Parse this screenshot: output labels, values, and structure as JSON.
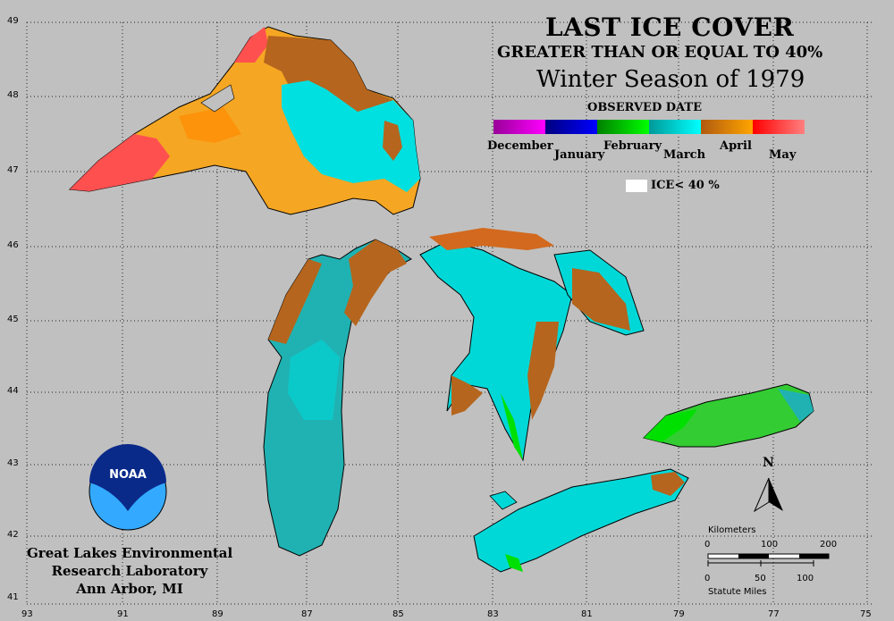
{
  "header": {
    "title": "LAST ICE COVER",
    "subtitle": "GREATER THAN OR EQUAL TO 40%",
    "season": "Winter Season of 1979"
  },
  "legend": {
    "heading": "OBSERVED DATE",
    "months": [
      "December",
      "January",
      "February",
      "March",
      "April",
      "May"
    ],
    "colors": {
      "december": [
        "#990099",
        "#ff00ff"
      ],
      "january": [
        "#000080",
        "#0000ff"
      ],
      "february": [
        "#008000",
        "#00ff00"
      ],
      "march": [
        "#009999",
        "#00ffff"
      ],
      "april": [
        "#b05a10",
        "#ffa500"
      ],
      "may": [
        "#ff0000",
        "#ff8080"
      ]
    },
    "no_ice_label": "ICE< 40 %"
  },
  "axes": {
    "lat_ticks": [
      "49",
      "48",
      "47",
      "46",
      "45",
      "44",
      "43",
      "42",
      "41"
    ],
    "lon_ticks": [
      "93",
      "91",
      "89",
      "87",
      "85",
      "83",
      "81",
      "79",
      "77",
      "75"
    ]
  },
  "scale_bar": {
    "km_label": "Kilometers",
    "km_ticks": [
      "0",
      "100",
      "200"
    ],
    "mi_ticks": [
      "0",
      "50",
      "100"
    ],
    "mi_label": "Statute Miles"
  },
  "north_arrow": {
    "label": "N"
  },
  "logo": {
    "text": "NOAA"
  },
  "lab": {
    "line1": "Great Lakes Environmental",
    "line2": "Research Laboratory",
    "line3": "Ann Arbor, MI"
  }
}
